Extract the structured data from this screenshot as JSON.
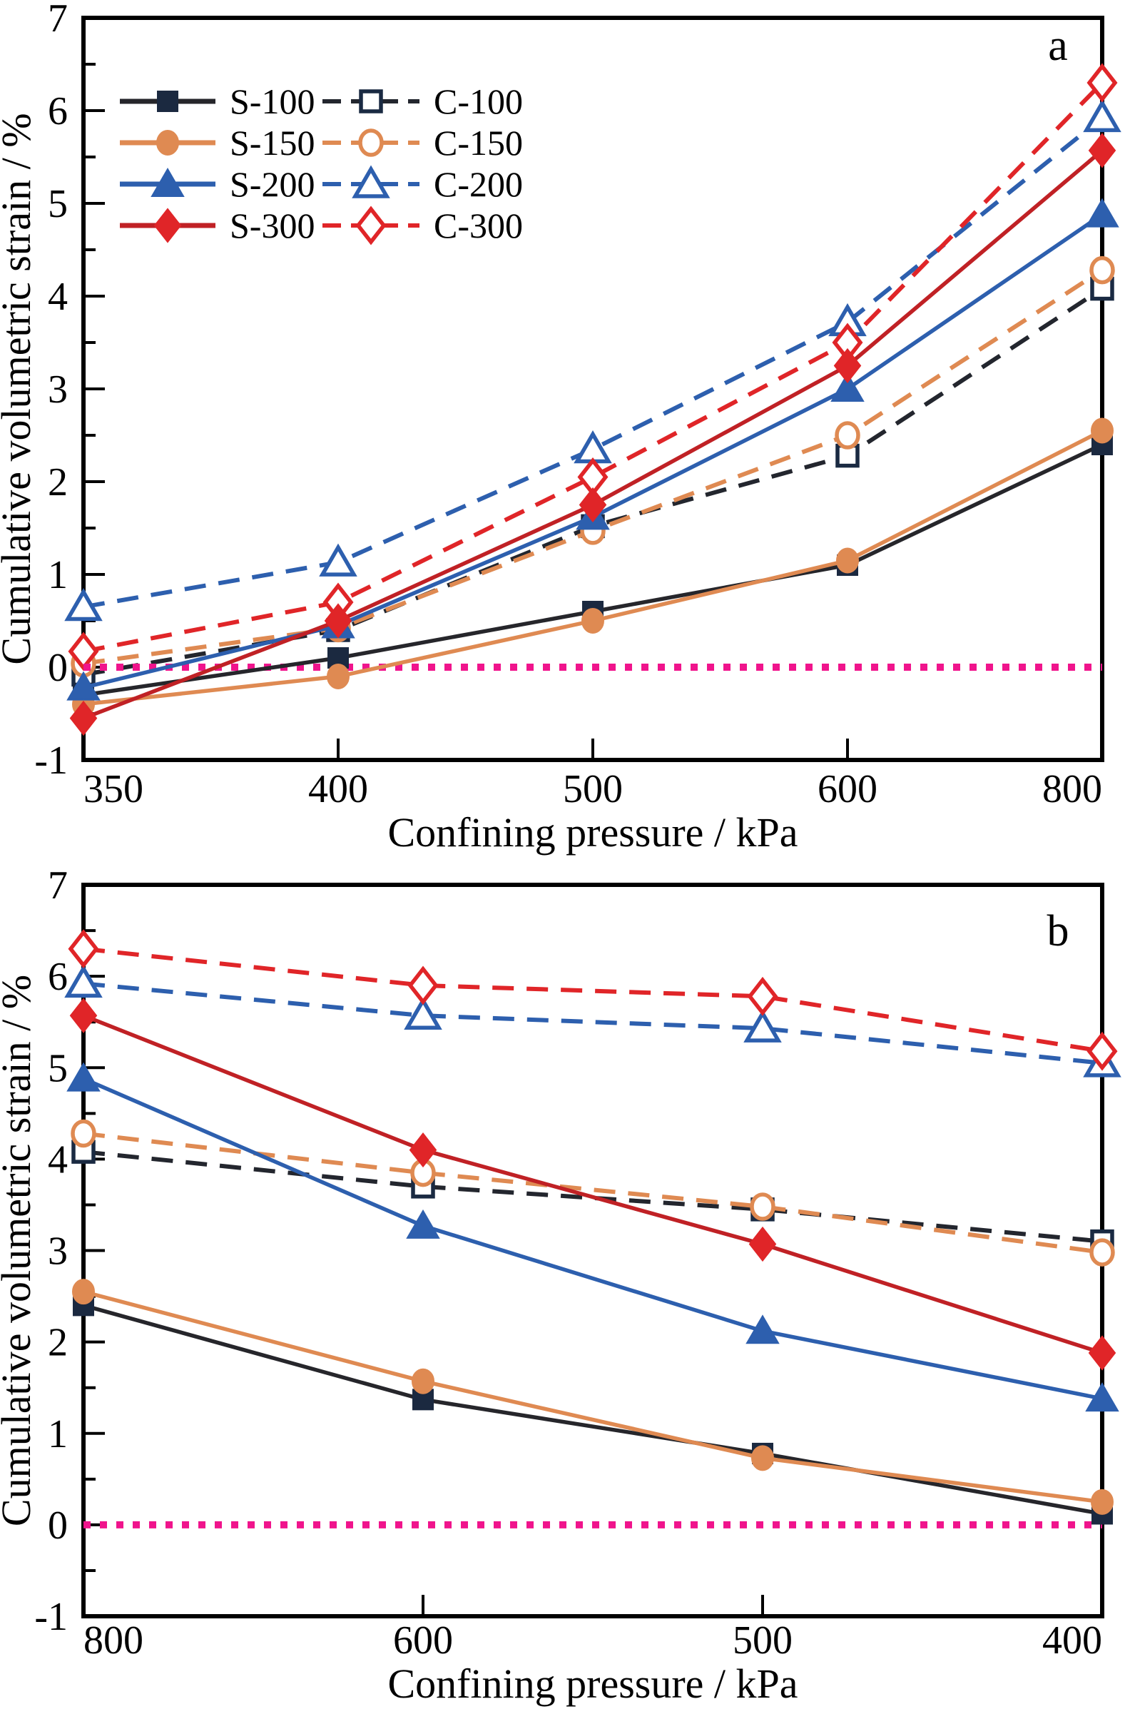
{
  "figure": {
    "ylabel": "Cumulative volumetric strain / %",
    "xlabel": "Confining pressure / kPa",
    "zero_line_color": "#F0148C",
    "frame_color": "#000000"
  },
  "chart_data": [
    {
      "type": "line",
      "panel_label": "a",
      "xlabel": "Confining pressure / kPa",
      "ylabel": "Cumulative volumetric strain / %",
      "categories": [
        "350",
        "400",
        "500",
        "600",
        "800"
      ],
      "ylim": [
        -1,
        7
      ],
      "yticks": [
        "-1",
        "0",
        "1",
        "2",
        "3",
        "4",
        "5",
        "6",
        "7"
      ],
      "grid": false,
      "zero_line": true,
      "legend_position": "top-left",
      "series": [
        {
          "name": "C-100",
          "marker": "square",
          "filled": false,
          "dash": true,
          "color": "#23262E",
          "marker_color": "#1A2A42",
          "values": [
            -0.08,
            0.4,
            1.52,
            2.28,
            4.08
          ]
        },
        {
          "name": "C-150",
          "marker": "circle",
          "filled": false,
          "dash": true,
          "color": "#DF8A52",
          "marker_color": "#DF8A52",
          "values": [
            0.04,
            0.42,
            1.47,
            2.5,
            4.28
          ]
        },
        {
          "name": "C-200",
          "marker": "triangle",
          "filled": false,
          "dash": true,
          "color": "#2D5FAE",
          "marker_color": "#2D5FAE",
          "values": [
            0.65,
            1.13,
            2.35,
            3.72,
            5.92
          ]
        },
        {
          "name": "C-300",
          "marker": "diamond",
          "filled": false,
          "dash": true,
          "color": "#E02528",
          "marker_color": "#E02528",
          "values": [
            0.17,
            0.7,
            2.05,
            3.5,
            6.3
          ]
        },
        {
          "name": "S-100",
          "marker": "square",
          "filled": true,
          "dash": false,
          "color": "#26262B",
          "marker_color": "#1B2940",
          "values": [
            -0.3,
            0.1,
            0.6,
            1.1,
            2.4
          ]
        },
        {
          "name": "S-150",
          "marker": "circle",
          "filled": true,
          "dash": false,
          "color": "#DF8A52",
          "marker_color": "#DF8A52",
          "values": [
            -0.4,
            -0.1,
            0.5,
            1.15,
            2.55
          ]
        },
        {
          "name": "S-200",
          "marker": "triangle",
          "filled": true,
          "dash": false,
          "color": "#2D5FAE",
          "marker_color": "#2D5FAE",
          "values": [
            -0.22,
            0.45,
            1.62,
            3.0,
            4.88
          ]
        },
        {
          "name": "S-300",
          "marker": "diamond",
          "filled": true,
          "dash": false,
          "color": "#C02125",
          "marker_color": "#E02528",
          "values": [
            -0.55,
            0.5,
            1.75,
            3.25,
            5.57
          ]
        }
      ],
      "legend_order": [
        "S-100",
        "S-150",
        "S-200",
        "S-300",
        "C-100",
        "C-150",
        "C-200",
        "C-300"
      ]
    },
    {
      "type": "line",
      "panel_label": "b",
      "xlabel": "Confining pressure / kPa",
      "ylabel": "Cumulative volumetric strain / %",
      "categories": [
        "800",
        "600",
        "500",
        "400"
      ],
      "ylim": [
        -1,
        7
      ],
      "yticks": [
        "-1",
        "0",
        "1",
        "2",
        "3",
        "4",
        "5",
        "6",
        "7"
      ],
      "grid": false,
      "zero_line": true,
      "legend_position": "none",
      "series": [
        {
          "name": "C-100",
          "marker": "square",
          "filled": false,
          "dash": true,
          "color": "#23262E",
          "marker_color": "#1A2A42",
          "values": [
            4.08,
            3.7,
            3.45,
            3.1
          ]
        },
        {
          "name": "C-150",
          "marker": "circle",
          "filled": false,
          "dash": true,
          "color": "#DF8A52",
          "marker_color": "#DF8A52",
          "values": [
            4.28,
            3.85,
            3.48,
            2.98
          ]
        },
        {
          "name": "C-200",
          "marker": "triangle",
          "filled": false,
          "dash": true,
          "color": "#2D5FAE",
          "marker_color": "#2D5FAE",
          "values": [
            5.92,
            5.57,
            5.43,
            5.05
          ]
        },
        {
          "name": "C-300",
          "marker": "diamond",
          "filled": false,
          "dash": true,
          "color": "#E02528",
          "marker_color": "#E02528",
          "values": [
            6.3,
            5.9,
            5.78,
            5.18
          ]
        },
        {
          "name": "S-100",
          "marker": "square",
          "filled": true,
          "dash": false,
          "color": "#26262B",
          "marker_color": "#1B2940",
          "values": [
            2.4,
            1.37,
            0.78,
            0.12
          ]
        },
        {
          "name": "S-150",
          "marker": "circle",
          "filled": true,
          "dash": false,
          "color": "#DF8A52",
          "marker_color": "#DF8A52",
          "values": [
            2.55,
            1.57,
            0.73,
            0.25
          ]
        },
        {
          "name": "S-200",
          "marker": "triangle",
          "filled": true,
          "dash": false,
          "color": "#2D5FAE",
          "marker_color": "#2D5FAE",
          "values": [
            4.88,
            3.27,
            2.12,
            1.38
          ]
        },
        {
          "name": "S-300",
          "marker": "diamond",
          "filled": true,
          "dash": false,
          "color": "#C02125",
          "marker_color": "#E02528",
          "values": [
            5.57,
            4.1,
            3.07,
            1.88
          ]
        }
      ]
    }
  ]
}
